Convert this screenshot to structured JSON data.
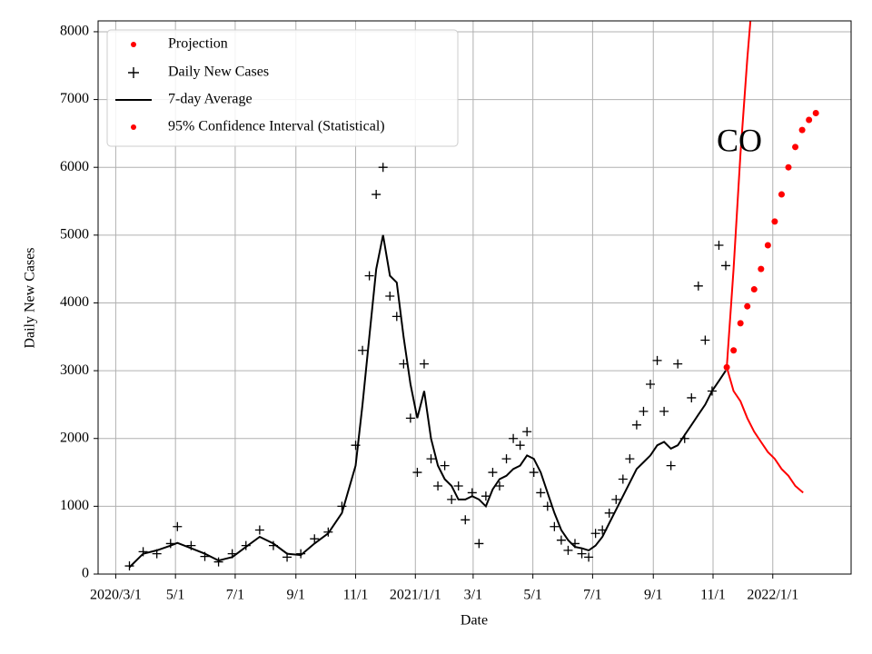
{
  "chart_data": {
    "type": "line",
    "xlabel": "Date",
    "ylabel": "Daily New Cases",
    "annotation": "CO",
    "xlim": [
      "2020-02-12",
      "2022-03-22"
    ],
    "ylim": [
      0,
      8160
    ],
    "xticks": [
      {
        "value": "2020-03-01",
        "label": "2020/3/1"
      },
      {
        "value": "2020-05-01",
        "label": "5/1"
      },
      {
        "value": "2020-07-01",
        "label": "7/1"
      },
      {
        "value": "2020-09-01",
        "label": "9/1"
      },
      {
        "value": "2020-11-01",
        "label": "11/1"
      },
      {
        "value": "2021-01-01",
        "label": "2021/1/1"
      },
      {
        "value": "2021-03-01",
        "label": "3/1"
      },
      {
        "value": "2021-05-01",
        "label": "5/1"
      },
      {
        "value": "2021-07-01",
        "label": "7/1"
      },
      {
        "value": "2021-09-01",
        "label": "9/1"
      },
      {
        "value": "2021-11-01",
        "label": "11/1"
      },
      {
        "value": "2022-01-01",
        "label": "2022/1/1"
      }
    ],
    "yticks": [
      0,
      1000,
      2000,
      3000,
      4000,
      5000,
      6000,
      7000,
      8000
    ],
    "grid": true,
    "legend": "upper left",
    "series": [
      {
        "name": "Projection",
        "color": "#ff0000",
        "style": "dots",
        "x": [
          "2021-11-15",
          "2021-11-22",
          "2021-11-29",
          "2021-12-06",
          "2021-12-13",
          "2021-12-20",
          "2021-12-27",
          "2022-01-03",
          "2022-01-10",
          "2022-01-17",
          "2022-01-24",
          "2022-01-31",
          "2022-02-07",
          "2022-02-14"
        ],
        "values": [
          3050,
          3300,
          3700,
          3950,
          4200,
          4500,
          4850,
          5200,
          5600,
          6000,
          6300,
          6550,
          6700,
          6800
        ]
      },
      {
        "name": "Daily New Cases",
        "color": "#000000",
        "style": "plus",
        "x": [
          "2020-03-15",
          "2020-03-29",
          "2020-04-12",
          "2020-04-26",
          "2020-05-03",
          "2020-05-17",
          "2020-05-31",
          "2020-06-14",
          "2020-06-28",
          "2020-07-12",
          "2020-07-26",
          "2020-08-09",
          "2020-08-23",
          "2020-09-06",
          "2020-09-20",
          "2020-10-04",
          "2020-10-18",
          "2020-11-01",
          "2020-11-08",
          "2020-11-15",
          "2020-11-22",
          "2020-11-29",
          "2020-12-06",
          "2020-12-13",
          "2020-12-20",
          "2020-12-27",
          "2021-01-03",
          "2021-01-10",
          "2021-01-17",
          "2021-01-24",
          "2021-01-31",
          "2021-02-07",
          "2021-02-14",
          "2021-02-21",
          "2021-02-28",
          "2021-03-07",
          "2021-03-14",
          "2021-03-21",
          "2021-03-28",
          "2021-04-04",
          "2021-04-11",
          "2021-04-18",
          "2021-04-25",
          "2021-05-02",
          "2021-05-09",
          "2021-05-16",
          "2021-05-23",
          "2021-05-30",
          "2021-06-06",
          "2021-06-13",
          "2021-06-20",
          "2021-06-27",
          "2021-07-04",
          "2021-07-11",
          "2021-07-18",
          "2021-07-25",
          "2021-08-01",
          "2021-08-08",
          "2021-08-15",
          "2021-08-22",
          "2021-08-29",
          "2021-09-05",
          "2021-09-12",
          "2021-09-19",
          "2021-09-26",
          "2021-10-03",
          "2021-10-10",
          "2021-10-17",
          "2021-10-24",
          "2021-10-31",
          "2021-11-07",
          "2021-11-14"
        ],
        "values": [
          120,
          330,
          300,
          450,
          700,
          420,
          260,
          180,
          300,
          420,
          650,
          420,
          250,
          300,
          520,
          620,
          1000,
          1900,
          3300,
          4400,
          5600,
          6000,
          4100,
          3800,
          3100,
          2300,
          1500,
          3100,
          1700,
          1300,
          1600,
          1100,
          1300,
          800,
          1200,
          450,
          1150,
          1500,
          1300,
          1700,
          2000,
          1900,
          2100,
          1500,
          1200,
          1000,
          700,
          500,
          350,
          450,
          300,
          250,
          600,
          650,
          900,
          1100,
          1400,
          1700,
          2200,
          2400,
          2800,
          3150,
          2400,
          1600,
          3100,
          2000,
          2600,
          4250,
          3450,
          2700,
          4850,
          4550
        ]
      },
      {
        "name": "7-day Average",
        "color": "#000000",
        "style": "line",
        "x": [
          "2020-03-15",
          "2020-03-29",
          "2020-04-12",
          "2020-04-26",
          "2020-05-03",
          "2020-05-17",
          "2020-05-31",
          "2020-06-14",
          "2020-06-28",
          "2020-07-12",
          "2020-07-26",
          "2020-08-09",
          "2020-08-23",
          "2020-09-06",
          "2020-09-20",
          "2020-10-04",
          "2020-10-18",
          "2020-11-01",
          "2020-11-08",
          "2020-11-15",
          "2020-11-22",
          "2020-11-29",
          "2020-12-06",
          "2020-12-13",
          "2020-12-20",
          "2020-12-27",
          "2021-01-03",
          "2021-01-10",
          "2021-01-17",
          "2021-01-24",
          "2021-01-31",
          "2021-02-07",
          "2021-02-14",
          "2021-02-21",
          "2021-02-28",
          "2021-03-07",
          "2021-03-14",
          "2021-03-21",
          "2021-03-28",
          "2021-04-04",
          "2021-04-11",
          "2021-04-18",
          "2021-04-25",
          "2021-05-02",
          "2021-05-09",
          "2021-05-16",
          "2021-05-23",
          "2021-05-30",
          "2021-06-06",
          "2021-06-13",
          "2021-06-20",
          "2021-06-27",
          "2021-07-04",
          "2021-07-11",
          "2021-07-18",
          "2021-07-25",
          "2021-08-01",
          "2021-08-08",
          "2021-08-15",
          "2021-08-22",
          "2021-08-29",
          "2021-09-05",
          "2021-09-12",
          "2021-09-19",
          "2021-09-26",
          "2021-10-03",
          "2021-10-10",
          "2021-10-17",
          "2021-10-24",
          "2021-10-31",
          "2021-11-07",
          "2021-11-14"
        ],
        "values": [
          100,
          300,
          350,
          420,
          460,
          380,
          300,
          200,
          250,
          400,
          550,
          450,
          300,
          280,
          450,
          600,
          900,
          1600,
          2500,
          3500,
          4500,
          5000,
          4400,
          4300,
          3500,
          2800,
          2300,
          2700,
          2000,
          1600,
          1400,
          1300,
          1100,
          1100,
          1150,
          1100,
          1000,
          1250,
          1400,
          1450,
          1550,
          1600,
          1750,
          1700,
          1500,
          1200,
          900,
          650,
          500,
          400,
          380,
          350,
          420,
          550,
          750,
          950,
          1150,
          1350,
          1550,
          1650,
          1750,
          1900,
          1950,
          1850,
          1900,
          2050,
          2200,
          2350,
          2500,
          2700,
          2850,
          3000
        ]
      },
      {
        "name": "95% Confidence Interval (Statistical)",
        "color": "#ff0000",
        "style": "band",
        "x": [
          "2021-11-15",
          "2021-11-22",
          "2021-11-29",
          "2021-12-06",
          "2021-12-10"
        ],
        "values": [
          3050,
          4500,
          6200,
          7600,
          8300
        ],
        "x_lower": [
          "2021-11-15",
          "2021-11-22",
          "2021-11-29",
          "2021-12-06",
          "2021-12-13",
          "2021-12-20",
          "2021-12-27",
          "2022-01-03",
          "2022-01-10",
          "2022-01-17",
          "2022-01-24",
          "2022-02-01"
        ],
        "lower": [
          3050,
          2700,
          2550,
          2300,
          2100,
          1950,
          1800,
          1700,
          1550,
          1450,
          1300,
          1200
        ]
      }
    ]
  }
}
